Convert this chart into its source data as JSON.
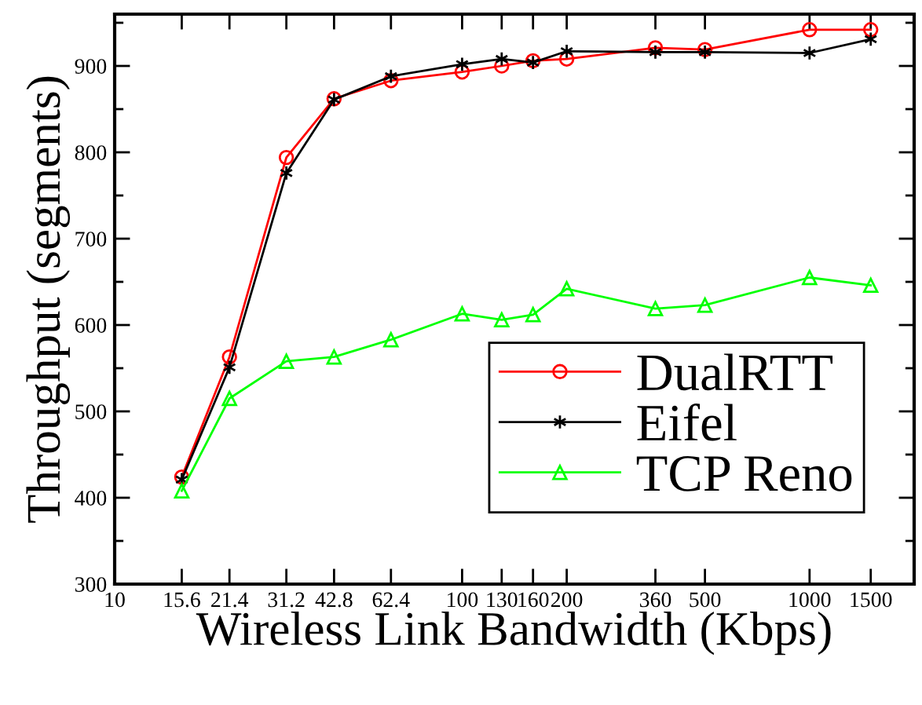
{
  "chart_data": {
    "type": "line",
    "xlabel": "Wireless Link Bandwidth (Kbps)",
    "ylabel": "Throughput (segments)",
    "x": [
      15.6,
      21.4,
      31.2,
      42.8,
      62.4,
      100,
      130,
      160,
      200,
      360,
      500,
      1000,
      1500
    ],
    "series": [
      {
        "name": "DualRTT",
        "color": "#ff0000",
        "marker": "circle",
        "values": [
          424,
          563,
          794,
          862,
          883,
          893,
          900,
          906,
          908,
          921,
          919,
          942,
          942
        ]
      },
      {
        "name": "Eifel",
        "color": "#000000",
        "marker": "cross",
        "values": [
          421,
          551,
          776,
          861,
          888,
          902,
          908,
          904,
          917,
          916,
          916,
          915,
          931
        ]
      },
      {
        "name": "TCP Reno",
        "color": "#00ff00",
        "marker": "triangle",
        "values": [
          408,
          515,
          558,
          563,
          583,
          613,
          606,
          612,
          642,
          619,
          623,
          655,
          646
        ]
      }
    ],
    "log": "x",
    "xlim": [
      10,
      2000
    ],
    "xticks": [
      10,
      15.6,
      21.4,
      31.2,
      42.8,
      62.4,
      100,
      130,
      160,
      200,
      360,
      500,
      1000,
      1500
    ],
    "ylim": [
      300,
      960
    ],
    "yticks": [
      300,
      {
        "value": 350,
        "label": null
      },
      400,
      {
        "value": 450,
        "label": null
      },
      500,
      {
        "value": 550,
        "label": null
      },
      600,
      {
        "value": 650,
        "label": null
      },
      700,
      {
        "value": 750,
        "label": null
      },
      800,
      {
        "value": 850,
        "label": null
      },
      900,
      {
        "value": 950,
        "label": null
      }
    ],
    "grid": false,
    "legend": "bottom right",
    "line_style": "solid"
  }
}
